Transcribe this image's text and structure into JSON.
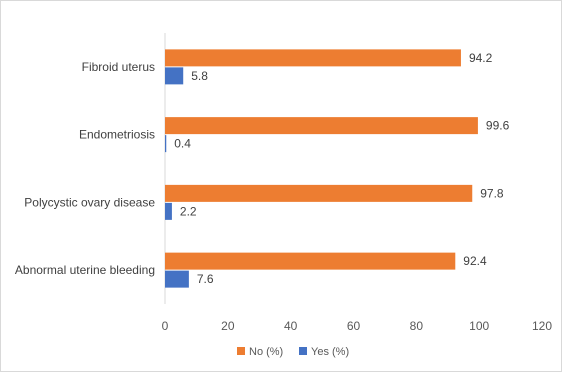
{
  "chart_data": {
    "type": "bar",
    "orientation": "horizontal",
    "categories": [
      "Fibroid uterus",
      "Endometriosis",
      "Polycystic ovary disease",
      "Abnormal uterine bleeding"
    ],
    "series": [
      {
        "name": "No (%)",
        "values": [
          94.2,
          99.6,
          97.8,
          92.4
        ],
        "color": "#ED7D31"
      },
      {
        "name": "Yes (%)",
        "values": [
          5.8,
          0.4,
          2.2,
          7.6
        ],
        "color": "#4472C4"
      }
    ],
    "xlim": [
      0,
      120
    ],
    "xticks": [
      0,
      20,
      40,
      60,
      80,
      100,
      120
    ],
    "grid": false,
    "legend": "bottom-center"
  }
}
